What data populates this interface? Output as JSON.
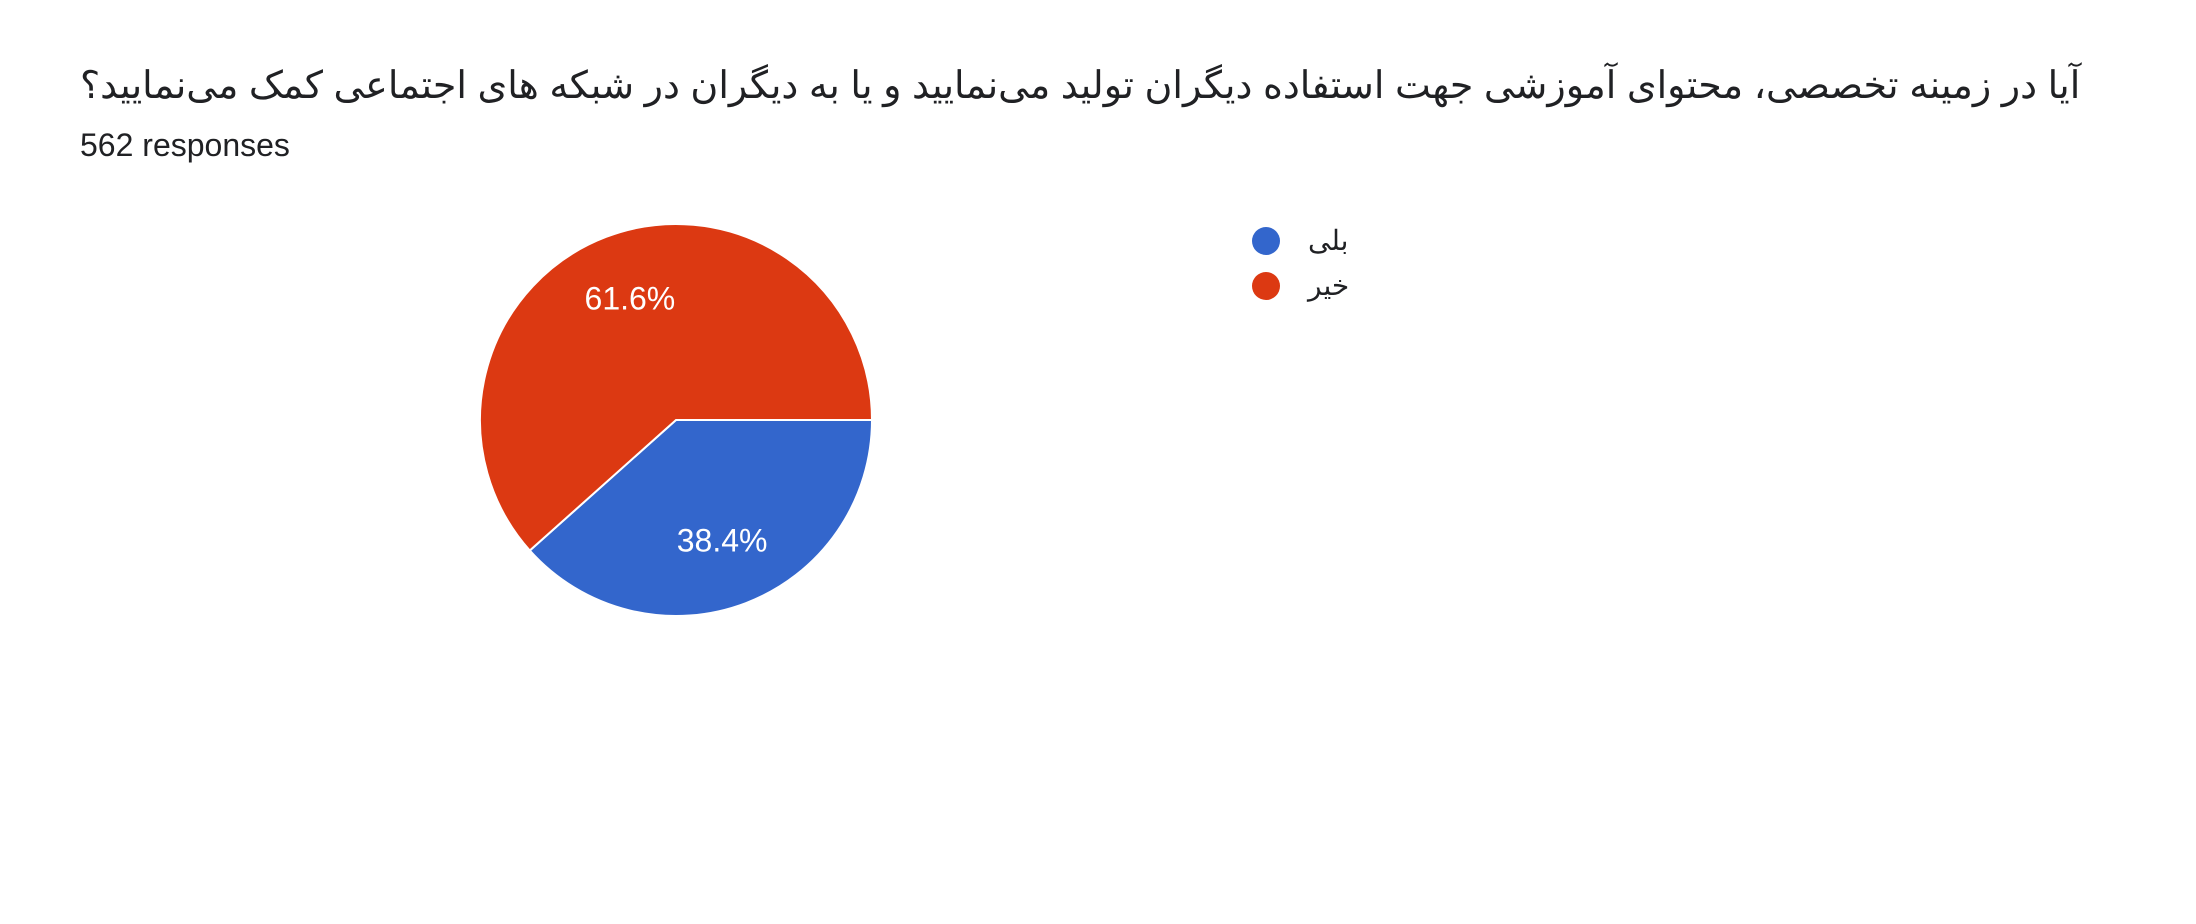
{
  "header": {
    "question": "آیا در زمینه تخصصی، محتوای آموزشی جهت استفاده دیگران تولید می‌نمایید و یا به دیگران در شبکه های اجتماعی کمک می‌نمایید؟",
    "response_count": "562 responses"
  },
  "chart": {
    "type": "pie",
    "radius": 196,
    "background_color": "#ffffff",
    "stroke_color": "#ffffff",
    "stroke_width": 2,
    "label_color": "#ffffff",
    "label_fontsize": 32,
    "slices": [
      {
        "label": "بلی",
        "value": 38.4,
        "display": "38.4%",
        "color": "#3366cc"
      },
      {
        "label": "خیر",
        "value": 61.6,
        "display": "61.6%",
        "color": "#dc3912"
      }
    ]
  },
  "legend": {
    "items": [
      {
        "label": "بلی",
        "color": "#3366cc"
      },
      {
        "label": "خیر",
        "color": "#dc3912"
      }
    ],
    "label_fontsize": 28,
    "swatch_size": 28
  }
}
